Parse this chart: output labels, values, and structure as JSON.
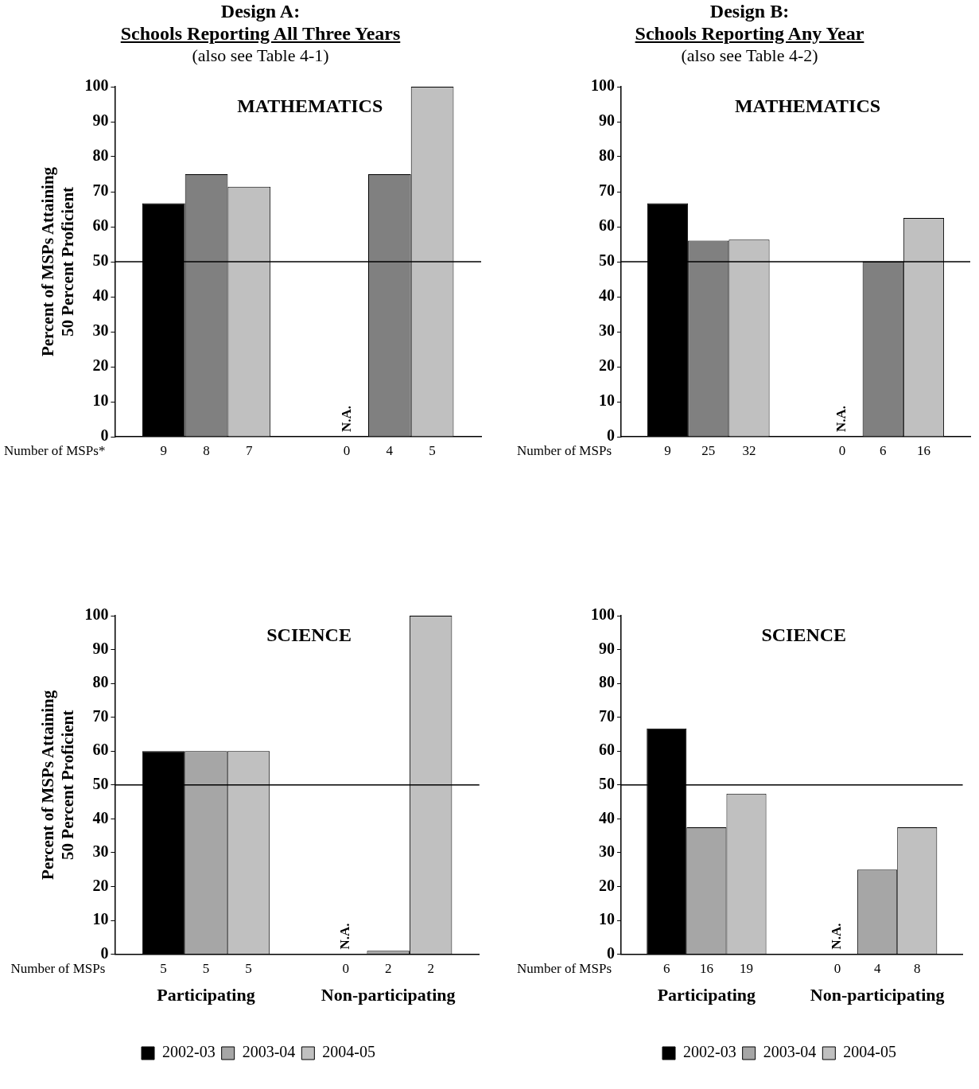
{
  "chart_data": [
    {
      "type": "bar",
      "title": "Design A:",
      "subtitle": "Schools Reporting All Three Years",
      "ylabel": "Percent of MSPs Attaining\n50 Percent Proficient",
      "categories": [
        null,
        null
      ],
      "series": [
        {
          "color": "#000000",
          "values": [
            66.7,
            null
          ]
        },
        {
          "color": "#808080",
          "values": [
            75,
            75
          ]
        },
        {
          "color": "#c0c0c0",
          "values": [
            71.4,
            100
          ]
        }
      ],
      "ylim": [
        0,
        100
      ],
      "yticks": [
        0,
        10,
        20,
        30,
        40,
        50,
        60,
        70,
        80,
        90,
        100
      ],
      "grid": false,
      "legend": false,
      "tick_labels": "y",
      "ref_lines": [
        {
          "axis": "y",
          "value": 50
        }
      ],
      "annotations": [
        "(also see Table 4-1)",
        "MATHEMATICS",
        "N.A.",
        "Number of MSPs*",
        "9",
        "8",
        "7",
        "0",
        "4",
        "5"
      ]
    },
    {
      "type": "bar",
      "title": "Design B:",
      "subtitle": "Schools Reporting Any Year",
      "categories": [
        null,
        null
      ],
      "series": [
        {
          "color": "#000000",
          "values": [
            66.7,
            null
          ]
        },
        {
          "color": "#808080",
          "values": [
            56,
            50
          ]
        },
        {
          "color": "#c0c0c0",
          "values": [
            56.3,
            62.5
          ]
        }
      ],
      "ylim": [
        0,
        100
      ],
      "yticks": [
        0,
        10,
        20,
        30,
        40,
        50,
        60,
        70,
        80,
        90,
        100
      ],
      "grid": false,
      "legend": false,
      "tick_labels": "y",
      "ref_lines": [
        {
          "axis": "y",
          "value": 50
        }
      ],
      "annotations": [
        "(also see Table 4-2)",
        "MATHEMATICS",
        "N.A.",
        "Number of MSPs",
        "9",
        "25",
        "32",
        "0",
        "6",
        "16"
      ]
    },
    {
      "type": "bar",
      "ylabel": "Percent of MSPs Attaining\n50 Percent Proficient",
      "categories": [
        "Participating",
        "Non-participating"
      ],
      "series": [
        {
          "name": "2002-03",
          "color": "#000000",
          "values": [
            60,
            null
          ]
        },
        {
          "name": "2003-04",
          "color": "#a6a6a6",
          "values": [
            60,
            1
          ]
        },
        {
          "name": "2004-05",
          "color": "#c0c0c0",
          "values": [
            60,
            100
          ]
        }
      ],
      "ylim": [
        0,
        100
      ],
      "yticks": [
        0,
        10,
        20,
        30,
        40,
        50,
        60,
        70,
        80,
        90,
        100
      ],
      "grid": false,
      "legend": "bottom",
      "ref_lines": [
        {
          "axis": "y",
          "value": 50
        }
      ],
      "annotations": [
        "SCIENCE",
        "N.A.",
        "Number of MSPs",
        "5",
        "5",
        "5",
        "0",
        "2",
        "2"
      ]
    },
    {
      "type": "bar",
      "categories": [
        "Participating",
        "Non-participating"
      ],
      "series": [
        {
          "name": "2002-03",
          "color": "#000000",
          "values": [
            66.7,
            null
          ]
        },
        {
          "name": "2003-04",
          "color": "#a6a6a6",
          "values": [
            37.5,
            25
          ]
        },
        {
          "name": "2004-05",
          "color": "#c0c0c0",
          "values": [
            47.4,
            37.5
          ]
        }
      ],
      "ylim": [
        0,
        100
      ],
      "yticks": [
        0,
        10,
        20,
        30,
        40,
        50,
        60,
        70,
        80,
        90,
        100
      ],
      "grid": false,
      "legend": "bottom",
      "ref_lines": [
        {
          "axis": "y",
          "value": 50
        }
      ],
      "annotations": [
        "SCIENCE",
        "N.A.",
        "Number of MSPs",
        "6",
        "16",
        "19",
        "0",
        "4",
        "8"
      ]
    }
  ]
}
